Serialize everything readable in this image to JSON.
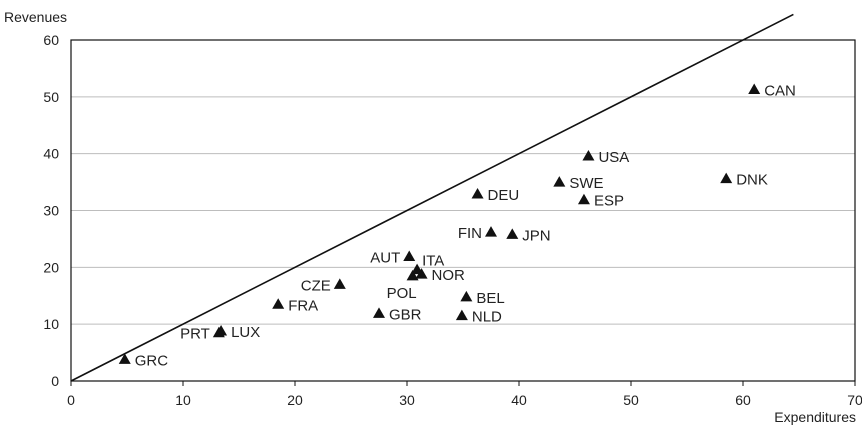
{
  "chart_data": {
    "type": "scatter",
    "title": "",
    "xlabel": "Expenditures",
    "ylabel": "Revenues",
    "xlim": [
      0,
      70
    ],
    "ylim": [
      0,
      60
    ],
    "x_ticks": [
      "0",
      "10",
      "20",
      "30",
      "40",
      "50",
      "60",
      "70"
    ],
    "y_ticks": [
      "0",
      "10",
      "20",
      "30",
      "40",
      "50",
      "60"
    ],
    "grid": "horizontal",
    "reference_line": {
      "type": "y=x",
      "x_end": 64.5
    },
    "marker": "triangle",
    "colors": {
      "marker": "#111111",
      "grid": "#bdbdbd",
      "axis": "#111111"
    },
    "points": [
      {
        "label": "GRC",
        "x": 4.8,
        "y": 3.8,
        "label_side": "right"
      },
      {
        "label": "PRT",
        "x": 13.2,
        "y": 8.5,
        "label_side": "left"
      },
      {
        "label": "LUX",
        "x": 13.4,
        "y": 8.8,
        "label_side": "right"
      },
      {
        "label": "FRA",
        "x": 18.5,
        "y": 13.5,
        "label_side": "right"
      },
      {
        "label": "CZE",
        "x": 24.0,
        "y": 17.0,
        "label_side": "left"
      },
      {
        "label": "GBR",
        "x": 27.5,
        "y": 11.9,
        "label_side": "right"
      },
      {
        "label": "AUT",
        "x": 30.2,
        "y": 21.9,
        "label_side": "left"
      },
      {
        "label": "ITA",
        "x": 30.9,
        "y": 19.6,
        "label_side": "right-up"
      },
      {
        "label": "POL",
        "x": 30.5,
        "y": 18.5,
        "label_side": "below-left"
      },
      {
        "label": "NOR",
        "x": 31.3,
        "y": 18.8,
        "label_side": "right"
      },
      {
        "label": "BEL",
        "x": 35.3,
        "y": 14.8,
        "label_side": "right"
      },
      {
        "label": "NLD",
        "x": 34.9,
        "y": 11.5,
        "label_side": "right"
      },
      {
        "label": "DEU",
        "x": 36.3,
        "y": 32.9,
        "label_side": "right"
      },
      {
        "label": "FIN",
        "x": 37.5,
        "y": 26.2,
        "label_side": "left"
      },
      {
        "label": "JPN",
        "x": 39.4,
        "y": 25.8,
        "label_side": "right"
      },
      {
        "label": "SWE",
        "x": 43.6,
        "y": 35.0,
        "label_side": "right"
      },
      {
        "label": "ESP",
        "x": 45.8,
        "y": 31.9,
        "label_side": "right"
      },
      {
        "label": "USA",
        "x": 46.2,
        "y": 39.6,
        "label_side": "right"
      },
      {
        "label": "DNK",
        "x": 58.5,
        "y": 35.6,
        "label_side": "right"
      },
      {
        "label": "CAN",
        "x": 61.0,
        "y": 51.3,
        "label_side": "right"
      }
    ]
  }
}
